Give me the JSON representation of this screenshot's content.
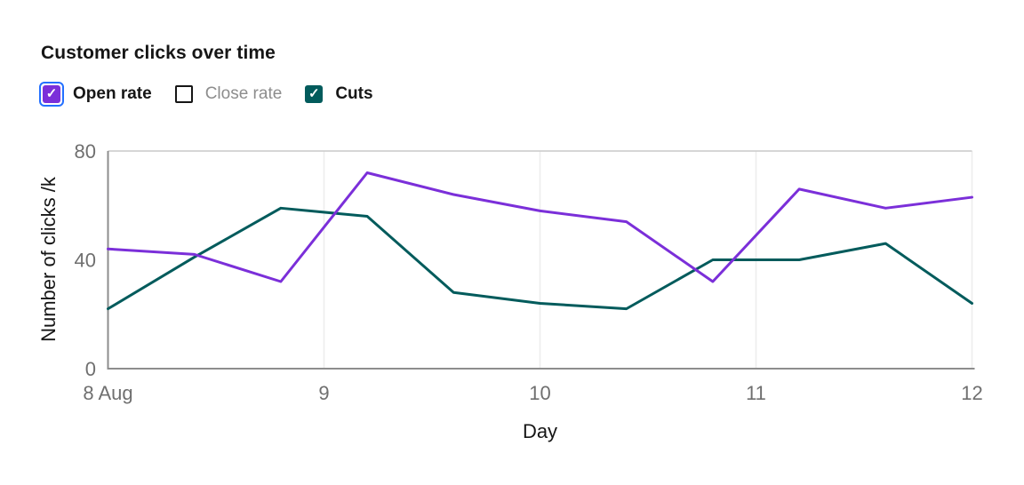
{
  "title": "Customer clicks over time",
  "legend": {
    "focus_ring_color": "#2470ff",
    "items": [
      {
        "label": "Open rate",
        "checked": true,
        "color": "#7b2fd9"
      },
      {
        "label": "Close rate",
        "checked": false,
        "color": "#ffffff"
      },
      {
        "label": "Cuts",
        "checked": true,
        "color": "#025b5c"
      }
    ]
  },
  "chart_data": {
    "type": "line",
    "title": "Customer clicks over time",
    "xlabel": "Day",
    "ylabel": "Number of clicks /k",
    "xlim": [
      8,
      12
    ],
    "ylim": [
      0,
      80
    ],
    "x": [
      8,
      8.4,
      8.8,
      9.2,
      9.6,
      10,
      10.4,
      10.8,
      11.2,
      11.6,
      12
    ],
    "x_tick_positions": [
      8,
      9,
      10,
      11,
      12
    ],
    "x_tick_labels": [
      "8 Aug",
      "9",
      "10",
      "11",
      "12"
    ],
    "y_ticks": [
      0,
      40,
      80
    ],
    "series": [
      {
        "name": "Open rate",
        "color": "#7b2fd9",
        "visible": true,
        "values": [
          44,
          42,
          32,
          72,
          64,
          58,
          54,
          32,
          66,
          59,
          63
        ]
      },
      {
        "name": "Close rate",
        "color": "#ffffff",
        "visible": false,
        "values": []
      },
      {
        "name": "Cuts",
        "color": "#025b5c",
        "visible": true,
        "values": [
          22,
          41,
          59,
          56,
          28,
          24,
          22,
          40,
          40,
          46,
          24
        ]
      }
    ],
    "grid": {
      "vertical_at": [
        9,
        10,
        11,
        12
      ],
      "top_line": true,
      "legend_position": "top-left"
    }
  },
  "colors": {
    "axis": "#8d8d8d",
    "gridline": "#ececec",
    "top_gridline": "#c9c9c9",
    "tick_text": "#6f6f6f",
    "label_text": "#161616",
    "muted_text": "#8d8d8d",
    "background": "#ffffff"
  }
}
